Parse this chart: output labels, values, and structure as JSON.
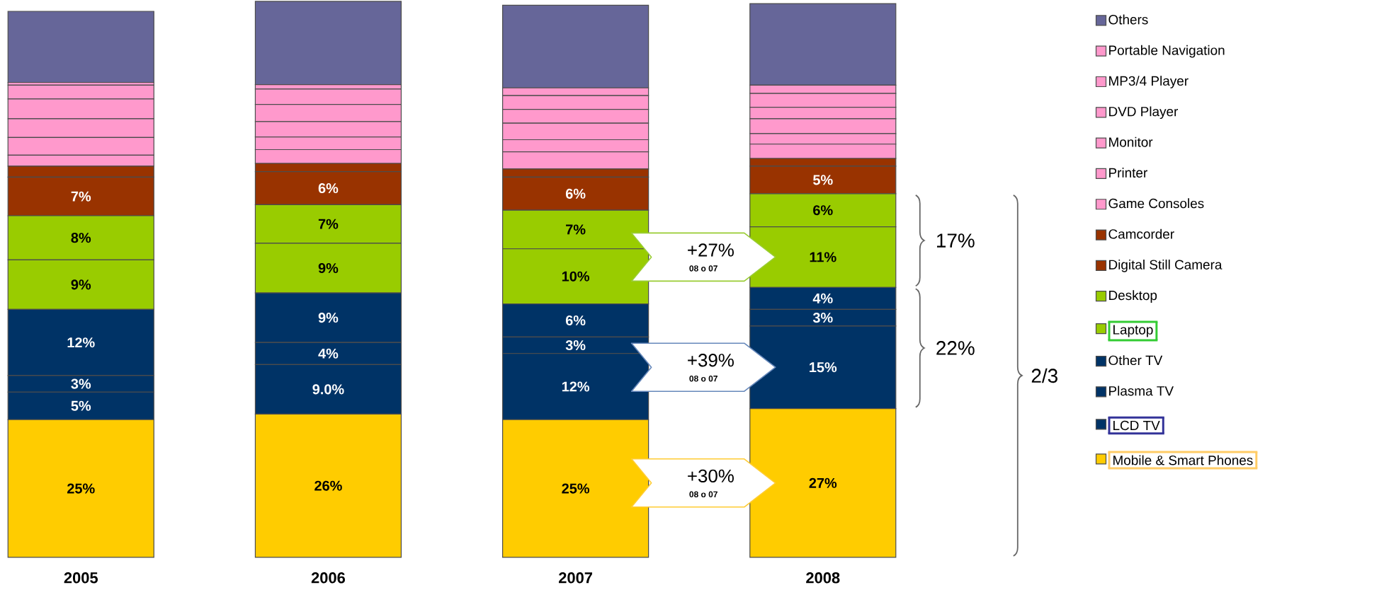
{
  "chart_data": {
    "type": "bar",
    "stacked": true,
    "legend": "right",
    "categories": [
      "2005",
      "2006",
      "2007",
      "2008"
    ],
    "series": [
      {
        "name": "Mobile & Smart Phones",
        "color": "#ffcc00",
        "values": [
          25,
          26,
          25,
          27
        ],
        "value_labels": [
          "25%",
          "26%",
          "25%",
          "27%"
        ]
      },
      {
        "name": "LCD TV",
        "color": "#003366",
        "values": [
          5,
          9.0,
          12,
          15
        ],
        "value_labels": [
          "5%",
          "9.0%",
          "12%",
          "15%"
        ]
      },
      {
        "name": "Plasma TV",
        "color": "#003366",
        "values": [
          3,
          4,
          3,
          3
        ],
        "value_labels": [
          "3%",
          "4%",
          "3%",
          "3%"
        ]
      },
      {
        "name": "Other TV",
        "color": "#003366",
        "values": [
          12,
          9,
          6,
          4
        ],
        "value_labels": [
          "12%",
          "9%",
          "6%",
          "4%"
        ]
      },
      {
        "name": "Laptop",
        "color": "#99cc00",
        "values": [
          9,
          9,
          10,
          11
        ],
        "value_labels": [
          "9%",
          "9%",
          "10%",
          "11%"
        ]
      },
      {
        "name": "Desktop",
        "color": "#99cc00",
        "values": [
          8,
          7,
          7,
          6
        ],
        "value_labels": [
          "8%",
          "7%",
          "7%",
          "6%"
        ]
      },
      {
        "name": "Digital Still Camera",
        "color": "#993300",
        "values": [
          7,
          6,
          6,
          5
        ],
        "value_labels": [
          "7%",
          "6%",
          "6%",
          "5%"
        ]
      },
      {
        "name": "Camcorder",
        "color": "#993300",
        "values": [
          2,
          1.5,
          1.5,
          1.4
        ]
      },
      {
        "name": "Game Consoles",
        "color": "#ff99cc",
        "values": [
          2,
          2.5,
          3.1,
          2.6
        ]
      },
      {
        "name": "Printer",
        "color": "#ff99cc",
        "values": [
          3.2,
          2.3,
          2.2,
          1.9
        ]
      },
      {
        "name": "Monitor",
        "color": "#ff99cc",
        "values": [
          3.4,
          2.8,
          3.0,
          2.7
        ]
      },
      {
        "name": "DVD Player",
        "color": "#ff99cc",
        "values": [
          3.6,
          3.1,
          2.5,
          2.1
        ]
      },
      {
        "name": "MP3/4 Player",
        "color": "#ff99cc",
        "values": [
          2.5,
          2.8,
          2.5,
          2.5
        ]
      },
      {
        "name": "Portable Navigation",
        "color": "#ff99cc",
        "values": [
          0.5,
          0.8,
          1.4,
          1.5
        ]
      },
      {
        "name": "Others",
        "color": "#666699",
        "values": [
          12.9,
          15.1,
          15.0,
          14.8
        ]
      }
    ],
    "annotations": [
      "+27%",
      "08 o 07",
      "+39%",
      "08 o 07",
      "+30%",
      "08 o 07",
      "17%",
      "22%",
      "2/3"
    ]
  }
}
